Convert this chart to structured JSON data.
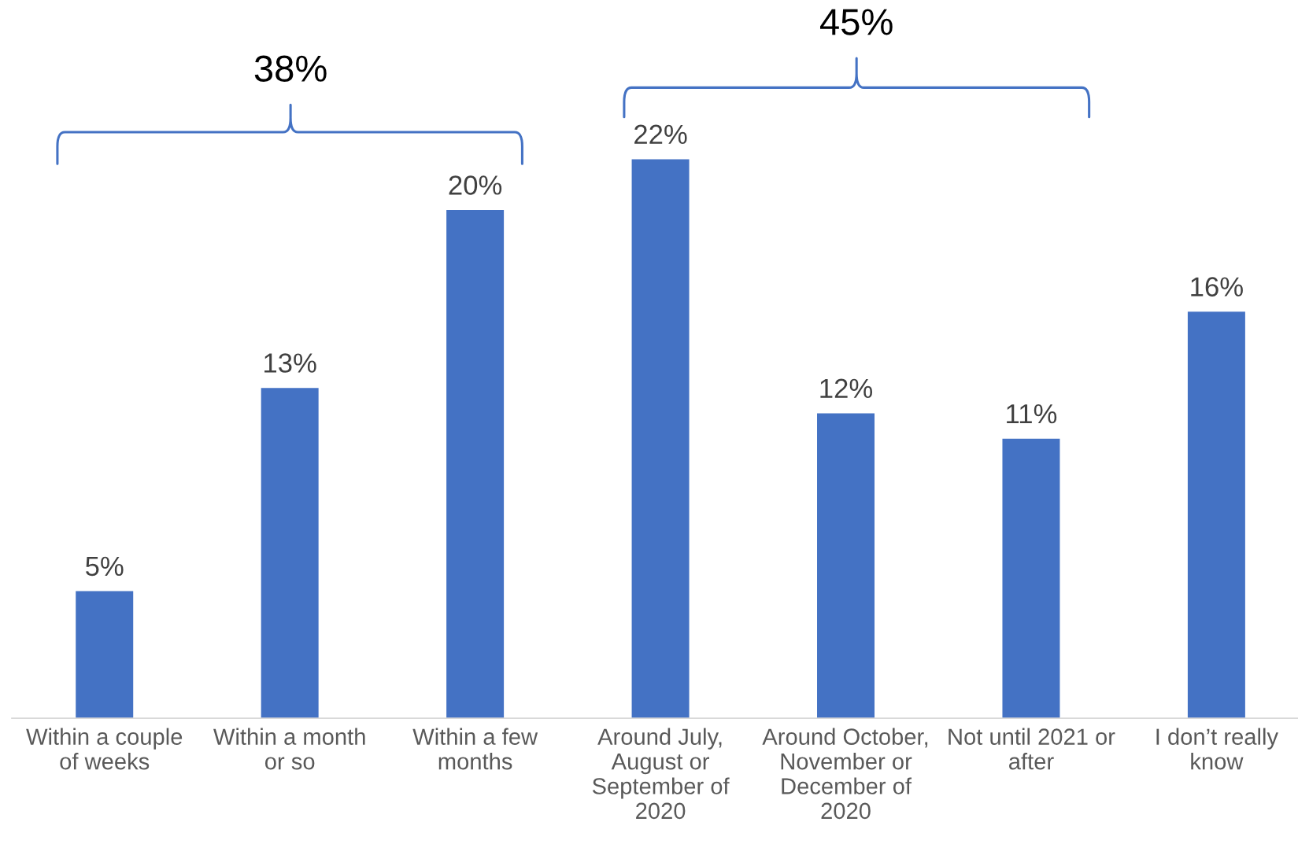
{
  "chart_data": {
    "type": "bar",
    "categories": [
      "Within a couple\nof weeks",
      "Within a month\nor so",
      "Within a few\nmonths",
      "Around July,\nAugust or\nSeptember of\n2020",
      "Around October,\nNovember or\nDecember of\n2020",
      "Not until 2021 or\nafter",
      "I don’t really\nknow"
    ],
    "values": [
      5,
      13,
      20,
      22,
      12,
      11,
      16
    ],
    "color": "#4472c4",
    "value_labels": [
      "5%",
      "13%",
      "20%",
      "22%",
      "12%",
      "11%",
      "16%"
    ],
    "annotations": [
      "38%",
      "45%"
    ]
  }
}
